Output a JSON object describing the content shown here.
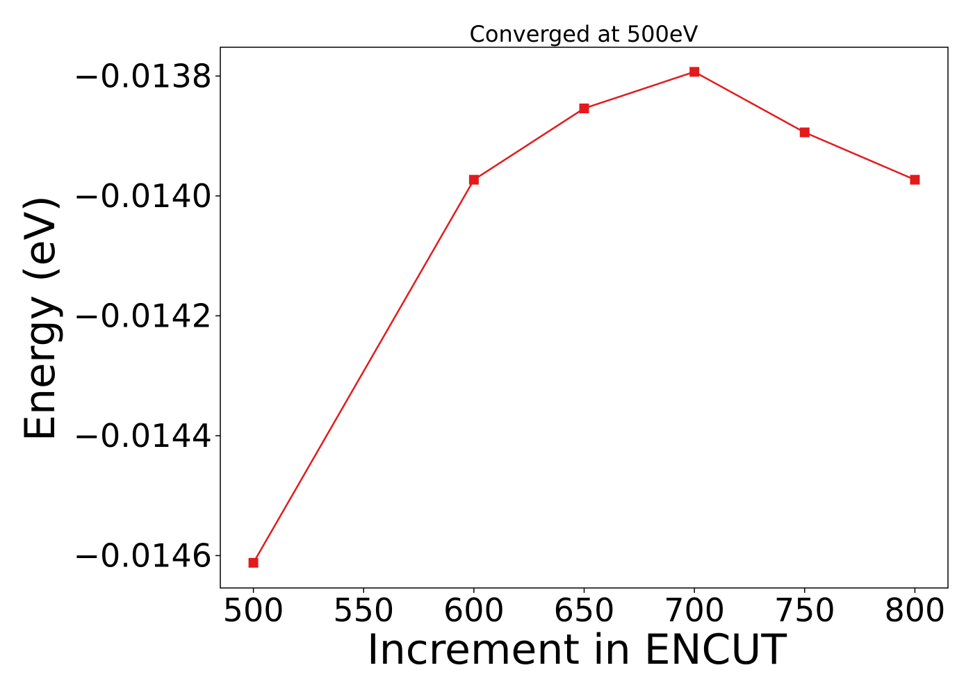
{
  "chart_data": {
    "type": "line",
    "title": "Converged at 500eV",
    "xlabel": "Increment in ENCUT",
    "ylabel": "Energy (eV)",
    "x": [
      500,
      600,
      650,
      700,
      750,
      800
    ],
    "series": [
      {
        "values": [
          -0.014612,
          -0.013973,
          -0.013854,
          -0.013793,
          -0.013894,
          -0.013973
        ],
        "color": "#e31a1c",
        "marker": "square"
      }
    ],
    "xlim": [
      485,
      815
    ],
    "ylim": [
      -0.014654,
      -0.013752
    ],
    "xticks": [
      500,
      550,
      600,
      650,
      700,
      750,
      800
    ],
    "xtick_labels": [
      "500",
      "550",
      "600",
      "650",
      "700",
      "750",
      "800"
    ],
    "yticks": [
      -0.0146,
      -0.0144,
      -0.0142,
      -0.014,
      -0.0138
    ],
    "ytick_labels": [
      "−0.0146",
      "−0.0144",
      "−0.0142",
      "−0.0140",
      "−0.0138"
    ],
    "grid": false,
    "legend": false
  }
}
